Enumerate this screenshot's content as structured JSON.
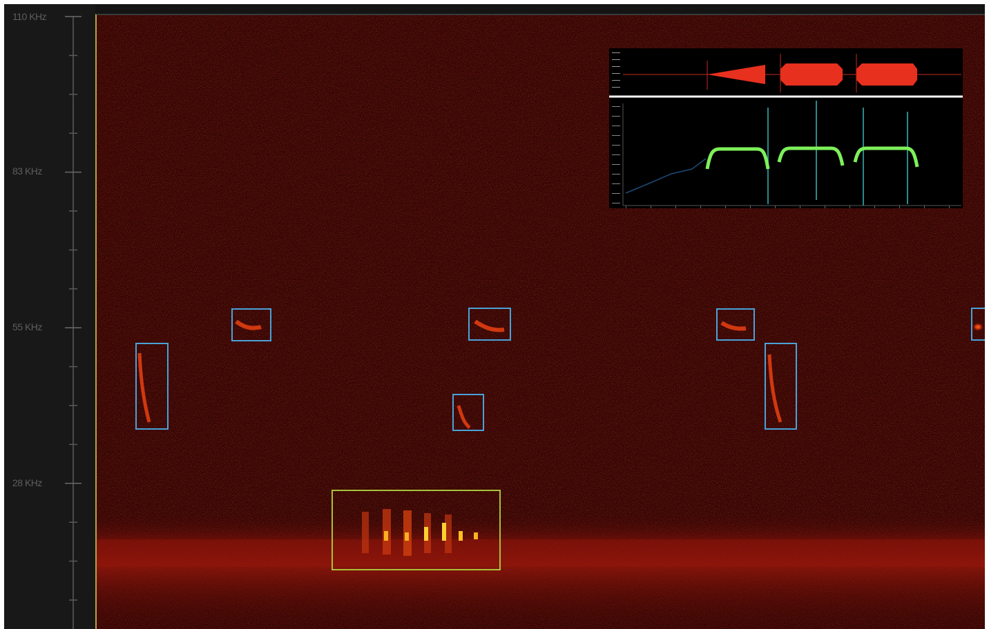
{
  "frequency_axis": {
    "ticks": [
      {
        "label": "110 KHz"
      },
      {
        "label": "83 KHz"
      },
      {
        "label": "55 KHz"
      },
      {
        "label": "28 KHz"
      }
    ]
  },
  "colors": {
    "background": "#141414",
    "spectrogram_base": "#3a0503",
    "detection_box": "#4aa3d8",
    "social_call_box": "#a9c23a",
    "waveform": "#e8301f",
    "pitch_trace": "#4fd15a",
    "divider": "#ffffff"
  },
  "detections": {
    "call_count": 8,
    "social_call_count": 1
  },
  "inset": {
    "waveform_pulses": 3,
    "pitch_segments": 3
  }
}
